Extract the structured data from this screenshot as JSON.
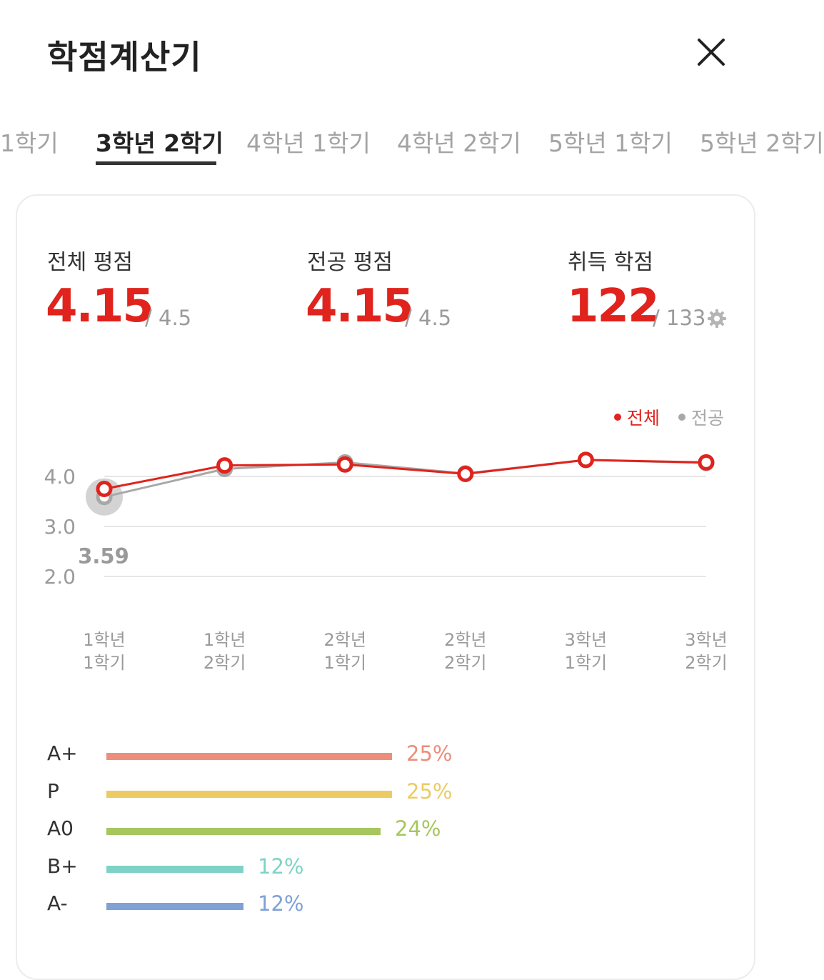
{
  "header": {
    "title": "학점계산기",
    "close_icon": "close-icon"
  },
  "tabs": [
    {
      "label": "1학기",
      "active": false
    },
    {
      "label": "3학년 2학기",
      "active": true
    },
    {
      "label": "4학년 1학기",
      "active": false
    },
    {
      "label": "4학년 2학기",
      "active": false
    },
    {
      "label": "5학년 1학기",
      "active": false
    },
    {
      "label": "5학년 2학기",
      "active": false
    }
  ],
  "stats": {
    "overall": {
      "label": "전체 평점",
      "value": "4.15",
      "max": "/ 4.5"
    },
    "major": {
      "label": "전공 평점",
      "value": "4.15",
      "max": "/ 4.5"
    },
    "credits": {
      "label": "취득 학점",
      "value": "122",
      "max": "/ 133",
      "settings_icon": "gear-icon"
    }
  },
  "legend": {
    "overall": "전체",
    "major": "전공"
  },
  "colors": {
    "accent": "#e0231d",
    "major_line": "#a8a8a8"
  },
  "chart_data": {
    "type": "line",
    "categories": [
      "1학년\n1학기",
      "1학년\n2학기",
      "2학년\n1학기",
      "2학년\n2학기",
      "3학년\n1학기",
      "3학년\n2학기"
    ],
    "category_lines": [
      [
        "1학년",
        "1학기"
      ],
      [
        "1학년",
        "2학기"
      ],
      [
        "2학년",
        "1학기"
      ],
      [
        "2학년",
        "2학기"
      ],
      [
        "3학년",
        "1학기"
      ],
      [
        "3학년",
        "2학기"
      ]
    ],
    "series": [
      {
        "name": "전체",
        "values": [
          3.75,
          4.22,
          4.24,
          4.05,
          4.33,
          4.28
        ]
      },
      {
        "name": "전공",
        "values": [
          3.59,
          4.15,
          4.28,
          4.06,
          4.33,
          4.27
        ]
      }
    ],
    "y_ticks": [
      "4.0",
      "3.0",
      "2.0"
    ],
    "y_tick_values": [
      4.0,
      3.0,
      2.0
    ],
    "ylim": [
      2.0,
      4.5
    ],
    "grid": true,
    "highlight_label": "3.59",
    "legend_position": "top-right"
  },
  "grades": [
    {
      "grade": "A+",
      "pct": "25%",
      "fraction": 0.25,
      "color": "#ec8e7c"
    },
    {
      "grade": "P",
      "pct": "25%",
      "fraction": 0.25,
      "color": "#eccb64"
    },
    {
      "grade": "A0",
      "pct": "24%",
      "fraction": 0.24,
      "color": "#a7c65e"
    },
    {
      "grade": "B+",
      "pct": "12%",
      "fraction": 0.12,
      "color": "#7fd3c6"
    },
    {
      "grade": "A-",
      "pct": "12%",
      "fraction": 0.12,
      "color": "#7fa1d6"
    }
  ]
}
